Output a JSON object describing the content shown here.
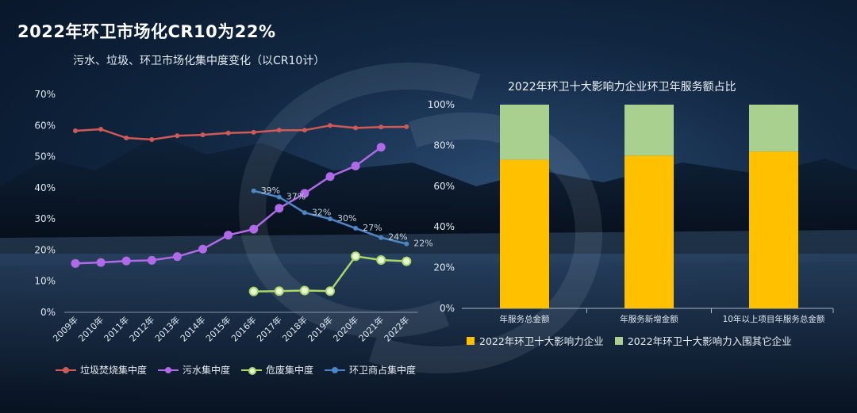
{
  "title": "2022年环卫市场化CR10为22%",
  "subtitle": "污水、垃圾、环卫市场化集中度变化（以CR10计）",
  "colors": {
    "accent_red": "#d05a56",
    "accent_purple": "#b06ae8",
    "accent_green": "#a8d86a",
    "accent_blue": "#4d86c6",
    "bar_gold": "#ffc000",
    "bar_green": "#a9d08e"
  },
  "chart_data": [
    {
      "type": "line",
      "x": [
        "2009年",
        "2010年",
        "2011年",
        "2012年",
        "2013年",
        "2014年",
        "2015年",
        "2016年",
        "2017年",
        "2018年",
        "2019年",
        "2020年",
        "2021年",
        "2022年"
      ],
      "ylim": [
        0,
        70
      ],
      "yticks": [
        "0%",
        "10%",
        "20%",
        "30%",
        "40%",
        "50%",
        "60%",
        "70%"
      ],
      "grid": false,
      "legend_position": "bottom",
      "series": [
        {
          "name": "垃圾焚烧集中度",
          "color": "#d05a56",
          "marker": "small",
          "values": [
            58.3,
            58.8,
            56,
            55.5,
            56.7,
            57,
            57.6,
            57.8,
            58.5,
            58.5,
            60,
            59.2,
            59.5,
            59.6
          ]
        },
        {
          "name": "污水集中度",
          "color": "#b06ae8",
          "marker": "large",
          "values": [
            15.7,
            16,
            16.5,
            16.7,
            17.9,
            20.3,
            24.8,
            26.7,
            33.4,
            38.2,
            43.6,
            47,
            53,
            null
          ]
        },
        {
          "name": "危废集中度",
          "color": "#a8d86a",
          "marker": "hollow",
          "values": [
            null,
            null,
            null,
            null,
            null,
            null,
            null,
            6.7,
            6.8,
            7,
            6.8,
            18,
            16.8,
            16.4
          ]
        },
        {
          "name": "环卫商占集中度",
          "color": "#4d86c6",
          "marker": "small",
          "values": [
            null,
            null,
            null,
            null,
            null,
            null,
            null,
            39,
            37,
            32,
            30,
            27,
            24,
            22
          ],
          "labels": [
            null,
            null,
            null,
            null,
            null,
            null,
            null,
            "39%",
            "37%",
            "32%",
            "30%",
            "27%",
            "24%",
            "22%"
          ]
        }
      ]
    },
    {
      "type": "bar",
      "stacked": true,
      "title": "2022年环卫十大影响力企业环卫年服务额占比",
      "categories": [
        "年服务总金额",
        "年服务新增金额",
        "10年以上项目年服务总金额"
      ],
      "ylim": [
        0,
        100
      ],
      "yticks": [
        "0%",
        "20%",
        "40%",
        "60%",
        "80%",
        "100%"
      ],
      "legend_position": "bottom",
      "series": [
        {
          "name": "2022年环卫十大影响力企业",
          "color": "#ffc000",
          "values": [
            73,
            75,
            77
          ]
        },
        {
          "name": "2022年环卫十大影响力入围其它企业",
          "color": "#a9d08e",
          "values": [
            27,
            25,
            23
          ]
        }
      ]
    }
  ]
}
